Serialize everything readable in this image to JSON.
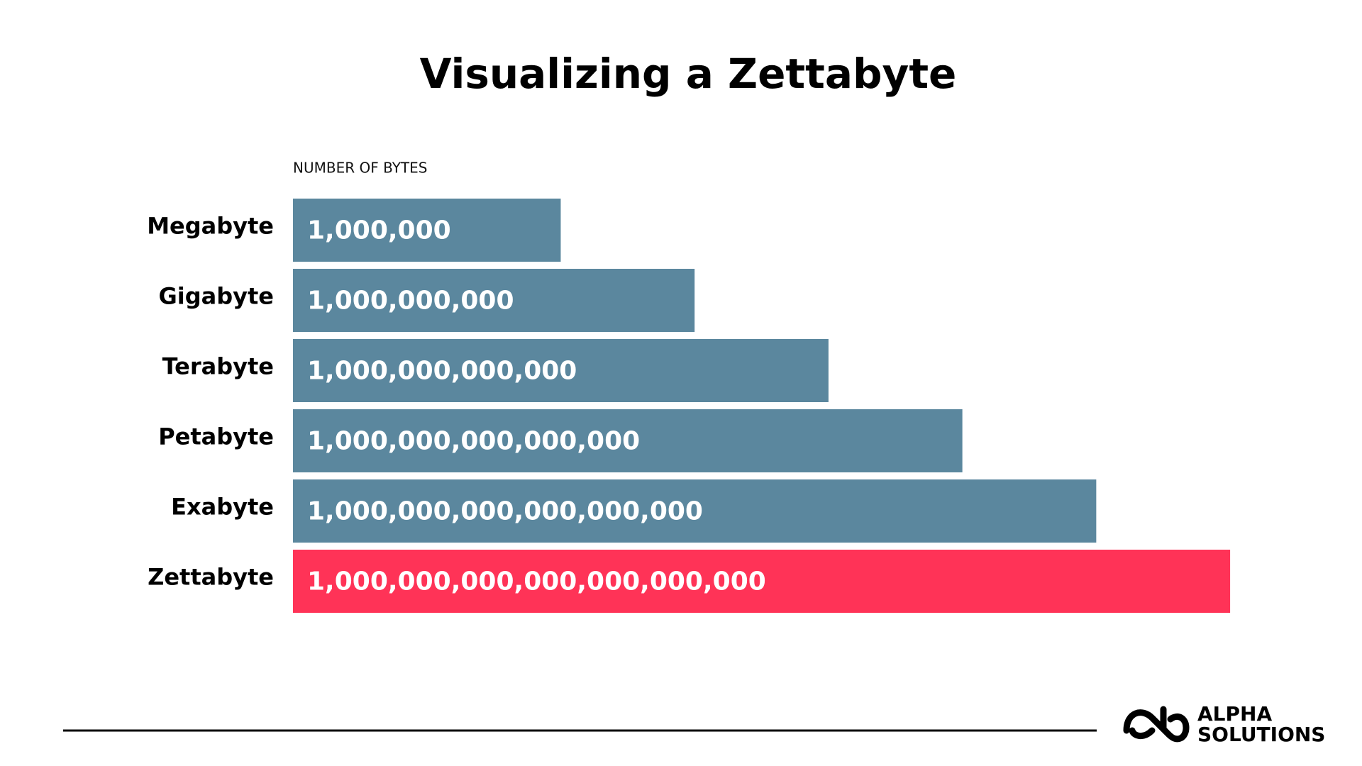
{
  "chart_data": {
    "type": "bar",
    "orientation": "horizontal",
    "title": "Visualizing a Zettabyte",
    "value_axis_label": "NUMBER OF BYTES",
    "categories": [
      "Megabyte",
      "Gigabyte",
      "Terabyte",
      "Petabyte",
      "Exabyte",
      "Zettabyte"
    ],
    "values": [
      1000000,
      1000000000,
      1000000000000,
      1000000000000000,
      1000000000000000000,
      1000000000000000000000
    ],
    "value_labels": [
      "1,000,000",
      "1,000,000,000",
      "1,000,000,000,000",
      "1,000,000,000,000,000",
      "1,000,000,000,000,000,000",
      "1,000,000,000,000,000,000,000"
    ],
    "colors": [
      "#5b879e",
      "#5b879e",
      "#5b879e",
      "#5b879e",
      "#5b879e",
      "#ff3357"
    ],
    "log_scale": true,
    "xlim": [
      1,
      10000000000000000000000
    ]
  },
  "footer": {
    "logo_lines": [
      "ALPHA",
      "SOLUTIONS"
    ]
  }
}
